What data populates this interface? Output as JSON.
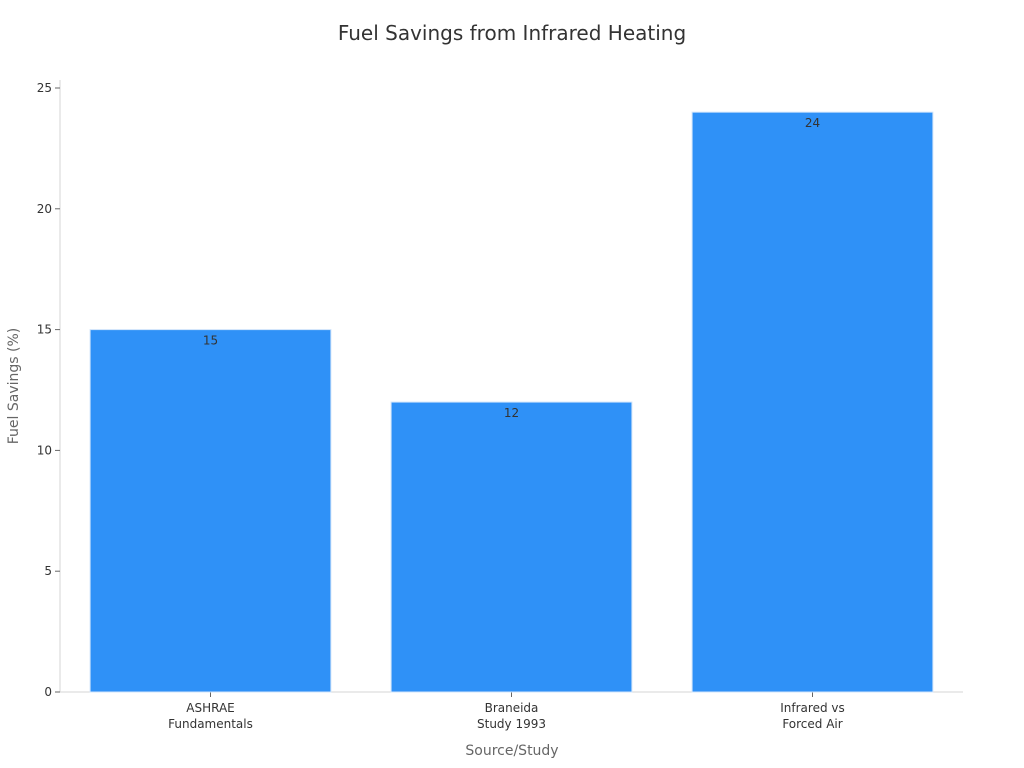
{
  "chart_data": {
    "type": "bar",
    "title": "Fuel Savings from Infrared Heating",
    "xlabel": "Source/Study",
    "ylabel": "Fuel Savings (%)",
    "categories": [
      [
        "ASHRAE",
        "Fundamentals"
      ],
      [
        "Braneida",
        "Study 1993"
      ],
      [
        "Infrared vs",
        "Forced Air"
      ]
    ],
    "values": [
      15,
      12,
      24
    ],
    "data_labels": [
      "15",
      "12",
      "24"
    ],
    "ylim": [
      0,
      25
    ],
    "yticks": [
      0,
      5,
      10,
      15,
      20,
      25
    ],
    "bar_color": "#2f91f7",
    "bar_edge_color": "#d0e4fb",
    "grid": false,
    "legend": "none"
  }
}
